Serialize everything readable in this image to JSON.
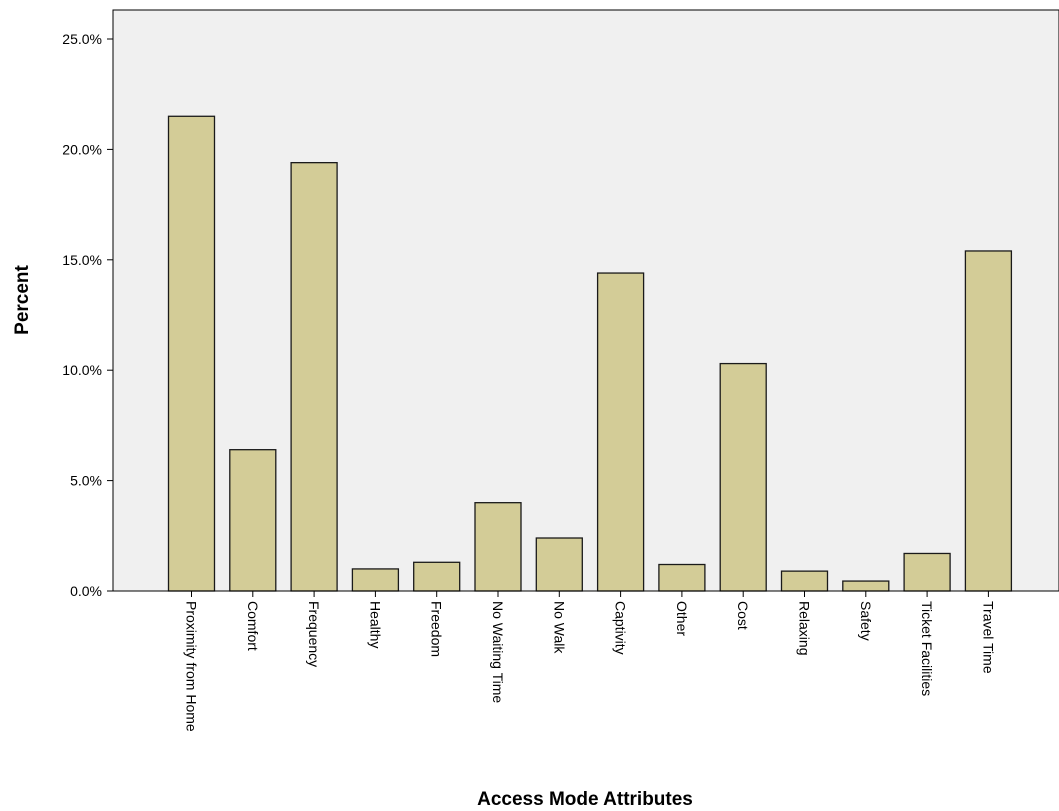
{
  "chart_data": {
    "type": "bar",
    "title": "",
    "xlabel": "Access Mode Attributes",
    "ylabel": "Percent",
    "categories": [
      "Proximity from Home",
      "Comfort",
      "Frequency",
      "Healthy",
      "Freedom",
      "No Waiting Time",
      "No Walk",
      "Captivity",
      "Other",
      "Cost",
      "Relaxing",
      "Safety",
      "Ticket Facilities",
      "Travel Time"
    ],
    "values": [
      21.5,
      6.4,
      19.4,
      1.0,
      1.3,
      4.0,
      2.4,
      14.4,
      1.2,
      10.3,
      0.9,
      0.45,
      1.7,
      15.4
    ],
    "yticks": [
      "0.0%",
      "5.0%",
      "10.0%",
      "15.0%",
      "20.0%",
      "25.0%"
    ],
    "ylim": [
      0,
      25
    ],
    "grid": false,
    "colors": {
      "bar_fill": "#d3cc97",
      "bar_stroke": "#1a1a1a",
      "plot_background": "#f0f0f0"
    }
  }
}
